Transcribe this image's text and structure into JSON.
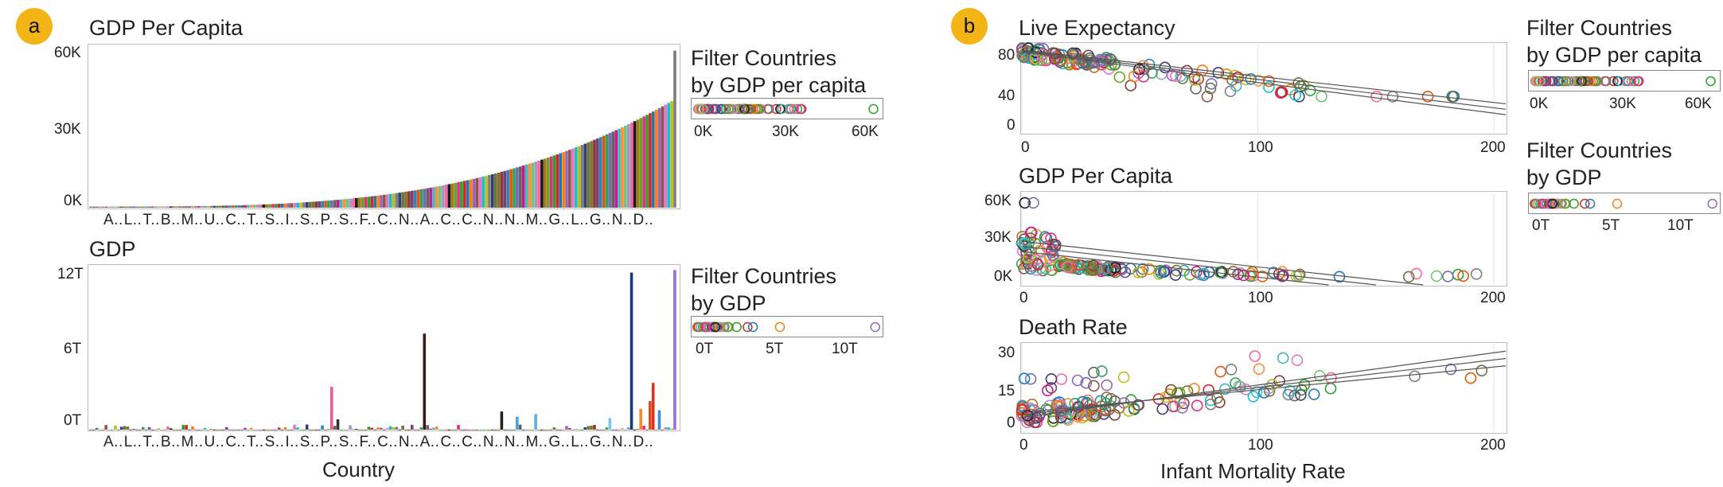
{
  "panels": {
    "a": {
      "label": "a"
    },
    "b": {
      "label": "b"
    }
  },
  "accent_color": "#f2b515",
  "chart_data": [
    {
      "id": "a-gdp-per-capita",
      "type": "bar",
      "title": "GDP Per Capita",
      "xlabel": "",
      "ylabel": "",
      "yticks": [
        "0K",
        "30K",
        "60K"
      ],
      "ylim": [
        0,
        62000
      ],
      "xtick_labels": [
        "A..",
        "L..",
        "T..",
        "B..",
        "M..",
        "U..",
        "C..",
        "T..",
        "S..",
        "I..",
        "S..",
        "P..",
        "S..",
        "F..",
        "C..",
        "N..",
        "A..",
        "C..",
        "C..",
        "N..",
        "N..",
        "M..",
        "G..",
        "L..",
        "G..",
        "N..",
        "D.."
      ],
      "n_bars": 190,
      "sorted": "ascending",
      "values_sample": [
        600,
        1500,
        3000,
        6000,
        10000,
        15000,
        22000,
        30000,
        36000,
        42000,
        60000
      ]
    },
    {
      "id": "a-gdp",
      "type": "bar",
      "title": "GDP",
      "xlabel": "Country",
      "yticks": [
        "0T",
        "6T",
        "12T"
      ],
      "ylim": [
        0,
        12.5
      ],
      "xtick_labels": [
        "A..",
        "L..",
        "T..",
        "B..",
        "M..",
        "U..",
        "C..",
        "T..",
        "S..",
        "I..",
        "S..",
        "P..",
        "S..",
        "F..",
        "C..",
        "N..",
        "A..",
        "C..",
        "C..",
        "N..",
        "N..",
        "M..",
        "G..",
        "L..",
        "G..",
        "N..",
        "D.."
      ],
      "tall_bars": [
        {
          "index": 78,
          "value": 3.3,
          "color": "#ef5a8a"
        },
        {
          "index": 80,
          "value": 0.8,
          "color": "#333333"
        },
        {
          "index": 108,
          "value": 7.4,
          "color": "#3a1a1a"
        },
        {
          "index": 133,
          "value": 1.4,
          "color": "#222222"
        },
        {
          "index": 138,
          "value": 1.0,
          "color": "#4aa3d8"
        },
        {
          "index": 144,
          "value": 1.2,
          "color": "#5ab0e0"
        },
        {
          "index": 168,
          "value": 0.9,
          "color": "#7dc4e8"
        },
        {
          "index": 175,
          "value": 12.1,
          "color": "#143d7a"
        },
        {
          "index": 178,
          "value": 1.6,
          "color": "#f28b30"
        },
        {
          "index": 181,
          "value": 2.2,
          "color": "#d94a1e"
        },
        {
          "index": 182,
          "value": 3.6,
          "color": "#e0301e"
        },
        {
          "index": 184,
          "value": 1.5,
          "color": "#3a8fd8"
        },
        {
          "index": 189,
          "value": 12.3,
          "color": "#9b6dd6"
        }
      ]
    },
    {
      "id": "b-life",
      "type": "scatter",
      "title": "Live Expectancy",
      "xlabel": "",
      "yticks": [
        "0",
        "40",
        "80"
      ],
      "xticks": [
        "0",
        "100",
        "200"
      ],
      "xlim": [
        0,
        205
      ],
      "ylim": [
        -10,
        88
      ],
      "fit_lines": [
        [
          0,
          79,
          205,
          10
        ],
        [
          0,
          80,
          205,
          16
        ],
        [
          0,
          81,
          205,
          22
        ]
      ]
    },
    {
      "id": "b-gdppc",
      "type": "scatter",
      "title": "GDP Per Capita",
      "yticks": [
        "0K",
        "30K",
        "60K"
      ],
      "xticks": [
        "0",
        "100",
        "200"
      ],
      "xlim": [
        0,
        205
      ],
      "ylim": [
        -6000,
        66000
      ],
      "fit_lines": [
        [
          0,
          20000,
          130,
          -6000
        ],
        [
          0,
          24000,
          150,
          -6000
        ],
        [
          0,
          28000,
          170,
          -6000
        ]
      ]
    },
    {
      "id": "b-death",
      "type": "scatter",
      "title": "Death Rate",
      "xlabel": "Infant Mortality Rate",
      "yticks": [
        "0",
        "15",
        "30"
      ],
      "xticks": [
        "0",
        "100",
        "200"
      ],
      "xlim": [
        0,
        205
      ],
      "ylim": [
        -3,
        33
      ],
      "fit_lines": [
        [
          0,
          5,
          205,
          24
        ],
        [
          0,
          4,
          205,
          27
        ],
        [
          0,
          3,
          205,
          30
        ]
      ]
    }
  ],
  "filters": {
    "a_gdppc": {
      "title_line1": "Filter Countries",
      "title_line2": "by GDP per capita",
      "ticks": [
        "0K",
        "30K",
        "60K"
      ]
    },
    "a_gdp": {
      "title_line1": "Filter Countries",
      "title_line2": "by GDP",
      "ticks": [
        "0T",
        "5T",
        "10T"
      ]
    },
    "b_gdppc": {
      "title_line1": "Filter Countries",
      "title_line2": "by GDP per capita",
      "ticks": [
        "0K",
        "30K",
        "60K"
      ]
    },
    "b_gdp": {
      "title_line1": "Filter Countries",
      "title_line2": "by GDP",
      "ticks": [
        "0T",
        "5T",
        "10T"
      ]
    }
  },
  "palette": [
    "#2ca02c",
    "#d62728",
    "#1f77b4",
    "#ff7f0e",
    "#9467bd",
    "#8c564b",
    "#e377c2",
    "#17becf",
    "#bcbd22",
    "#7f7f7f",
    "#393b79",
    "#637939",
    "#8c6d31",
    "#843c39",
    "#7b4173",
    "#3182bd",
    "#e6550d",
    "#31a354",
    "#756bb1",
    "#636363",
    "#c51b8a",
    "#41b6c4",
    "#fd8d3c",
    "#74c476",
    "#9e9ac8",
    "#f768a1",
    "#1a1a1a",
    "#a6761d",
    "#66a61e",
    "#e7298a"
  ]
}
